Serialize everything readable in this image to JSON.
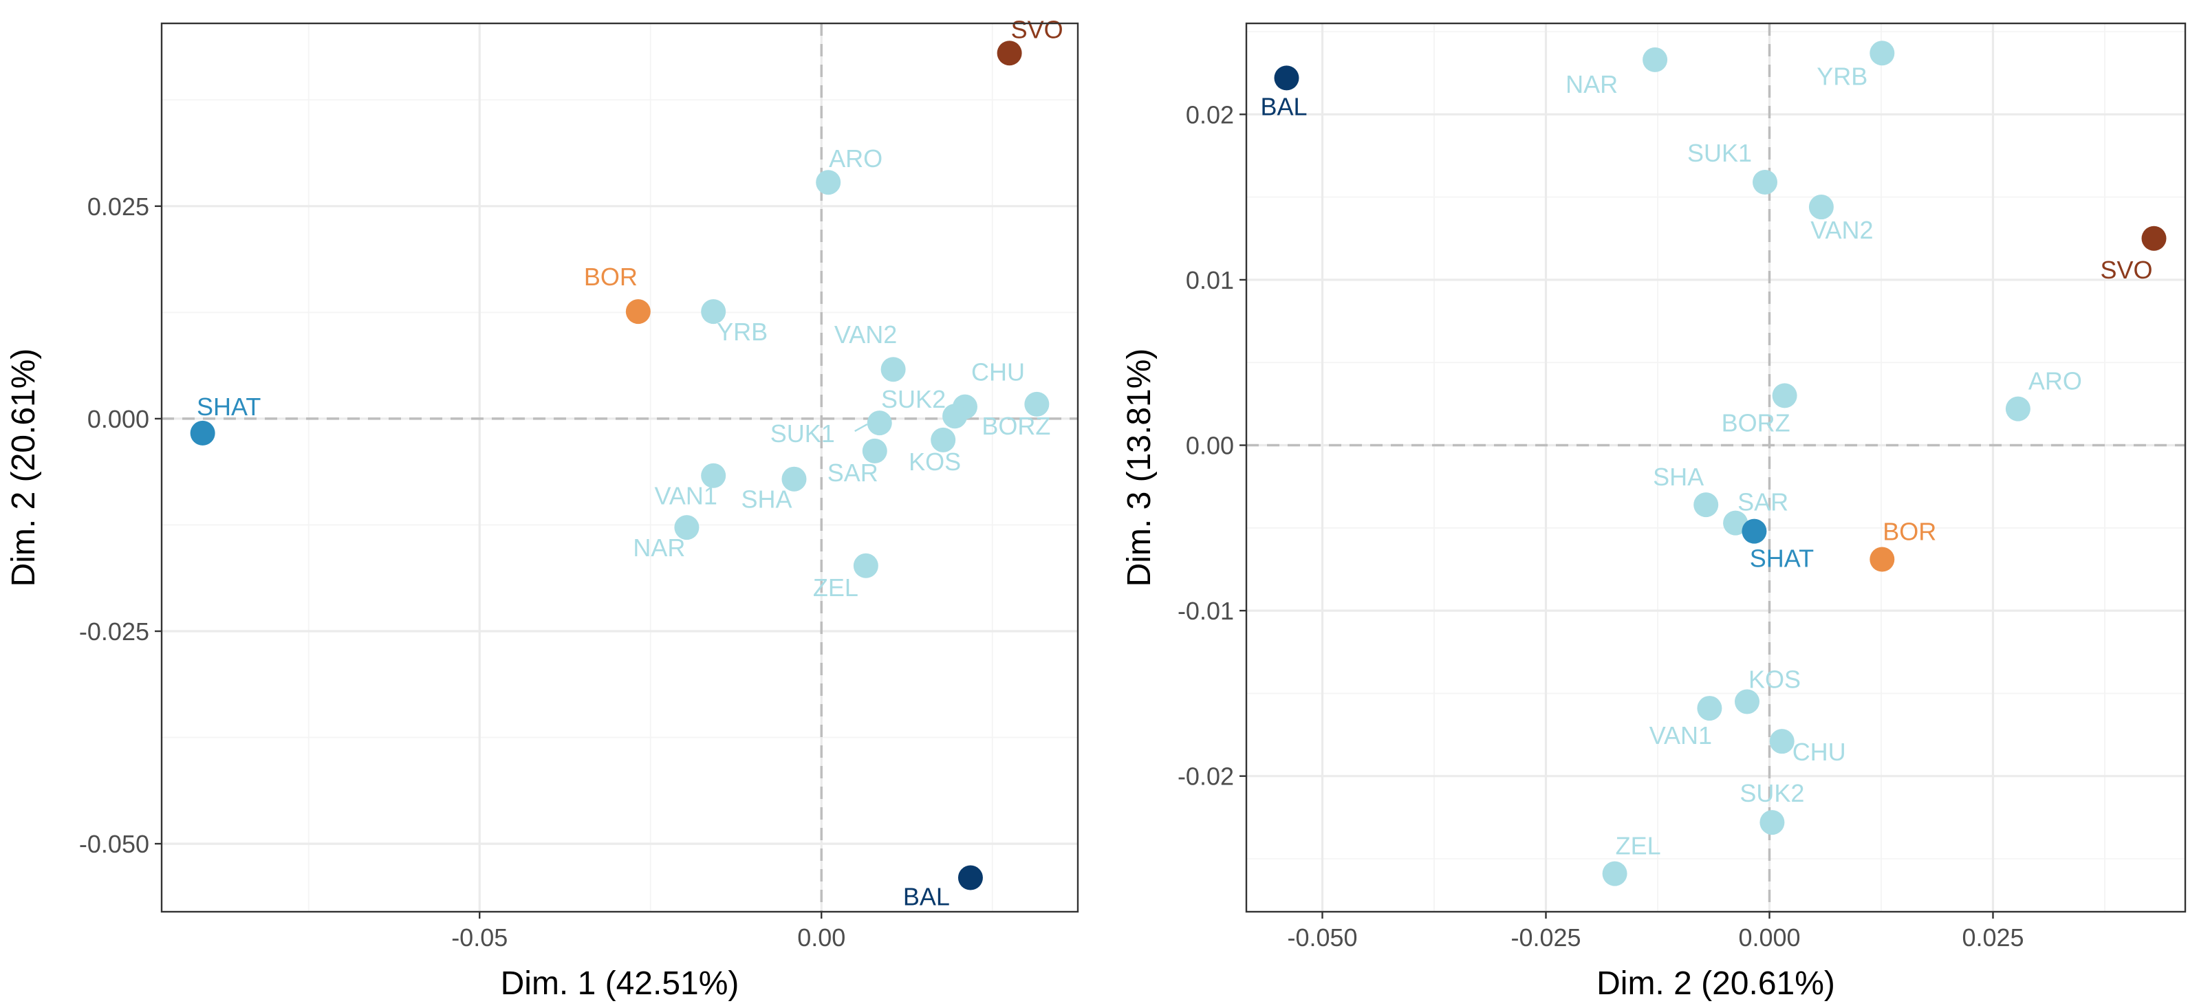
{
  "colors": {
    "default": "#a8dce4",
    "SHAT": "#2b8cbe",
    "BAL": "#08396b",
    "SVO": "#8c3a1c",
    "BOR": "#ec8e45"
  },
  "chart_data": [
    {
      "type": "scatter",
      "title": "",
      "xlabel": "Dim. 1 (42.51%)",
      "ylabel": "Dim. 2 (20.61%)",
      "xlim": [
        -0.0965,
        0.0375
      ],
      "ylim": [
        -0.058,
        0.0465
      ],
      "xticks": [
        -0.05,
        0.0
      ],
      "xtick_labels": [
        "-0.05",
        "0.00"
      ],
      "yticks": [
        -0.05,
        -0.025,
        0.0,
        0.025
      ],
      "ytick_labels": [
        "-0.050",
        "-0.025",
        "0.000",
        "0.025"
      ],
      "points": [
        {
          "label": "SVO",
          "x": 0.0275,
          "y": 0.043,
          "group": "SVO"
        },
        {
          "label": "ARO",
          "x": 0.001,
          "y": 0.0278,
          "group": "default"
        },
        {
          "label": "BOR",
          "x": -0.0268,
          "y": 0.0126,
          "group": "BOR"
        },
        {
          "label": "YRB",
          "x": -0.0158,
          "y": 0.0126,
          "group": "default"
        },
        {
          "label": "VAN2",
          "x": 0.0105,
          "y": 0.0058,
          "group": "default"
        },
        {
          "label": "CHU",
          "x": 0.021,
          "y": 0.0014,
          "group": "default"
        },
        {
          "label": "BORZ",
          "x": 0.0315,
          "y": 0.0017,
          "group": "default"
        },
        {
          "label": "SUK2",
          "x": 0.0195,
          "y": 0.0003,
          "group": "default"
        },
        {
          "label": "SUK1",
          "x": 0.0085,
          "y": -0.0005,
          "group": "default"
        },
        {
          "label": "SAR",
          "x": 0.0078,
          "y": -0.0038,
          "group": "default"
        },
        {
          "label": "KOS",
          "x": 0.0178,
          "y": -0.0025,
          "group": "default"
        },
        {
          "label": "SHAT",
          "x": -0.0905,
          "y": -0.0017,
          "group": "SHAT"
        },
        {
          "label": "VAN1",
          "x": -0.0158,
          "y": -0.0067,
          "group": "default"
        },
        {
          "label": "SHA",
          "x": -0.004,
          "y": -0.0071,
          "group": "default"
        },
        {
          "label": "NAR",
          "x": -0.0197,
          "y": -0.0128,
          "group": "default"
        },
        {
          "label": "ZEL",
          "x": 0.0065,
          "y": -0.0173,
          "group": "default"
        },
        {
          "label": "BAL",
          "x": 0.0218,
          "y": -0.054,
          "group": "BAL"
        }
      ]
    },
    {
      "type": "scatter",
      "title": "",
      "xlabel": "Dim. 2 (20.61%)",
      "ylabel": "Dim. 3 (13.81%)",
      "xlim": [
        -0.0585,
        0.0465
      ],
      "ylim": [
        -0.0282,
        0.0255
      ],
      "xticks": [
        -0.05,
        -0.025,
        0.0,
        0.025
      ],
      "xtick_labels": [
        "-0.050",
        "-0.025",
        "0.000",
        "0.025"
      ],
      "yticks": [
        -0.02,
        -0.01,
        0.0,
        0.01,
        0.02
      ],
      "ytick_labels": [
        "-0.02",
        "-0.01",
        "0.00",
        "0.01",
        "0.02"
      ],
      "points": [
        {
          "label": "BAL",
          "x": -0.054,
          "y": 0.0222,
          "group": "BAL"
        },
        {
          "label": "NAR",
          "x": -0.0128,
          "y": 0.0233,
          "group": "default"
        },
        {
          "label": "YRB",
          "x": 0.0126,
          "y": 0.0237,
          "group": "default"
        },
        {
          "label": "SUK1",
          "x": -0.0005,
          "y": 0.0159,
          "group": "default"
        },
        {
          "label": "VAN2",
          "x": 0.0058,
          "y": 0.0144,
          "group": "default"
        },
        {
          "label": "SVO",
          "x": 0.043,
          "y": 0.0125,
          "group": "SVO"
        },
        {
          "label": "ARO",
          "x": 0.0278,
          "y": 0.0022,
          "group": "default"
        },
        {
          "label": "BORZ",
          "x": 0.0017,
          "y": 0.003,
          "group": "default"
        },
        {
          "label": "SHA",
          "x": -0.0071,
          "y": -0.0036,
          "group": "default"
        },
        {
          "label": "SAR",
          "x": -0.0038,
          "y": -0.0047,
          "group": "default"
        },
        {
          "label": "SHAT",
          "x": -0.0017,
          "y": -0.0052,
          "group": "SHAT"
        },
        {
          "label": "BOR",
          "x": 0.0126,
          "y": -0.0069,
          "group": "BOR"
        },
        {
          "label": "KOS",
          "x": -0.0025,
          "y": -0.0155,
          "group": "default"
        },
        {
          "label": "VAN1",
          "x": -0.0067,
          "y": -0.0159,
          "group": "default"
        },
        {
          "label": "CHU",
          "x": 0.0014,
          "y": -0.0179,
          "group": "default"
        },
        {
          "label": "SUK2",
          "x": 0.0003,
          "y": -0.0228,
          "group": "default"
        },
        {
          "label": "ZEL",
          "x": -0.0173,
          "y": -0.0259,
          "group": "default"
        }
      ]
    }
  ]
}
